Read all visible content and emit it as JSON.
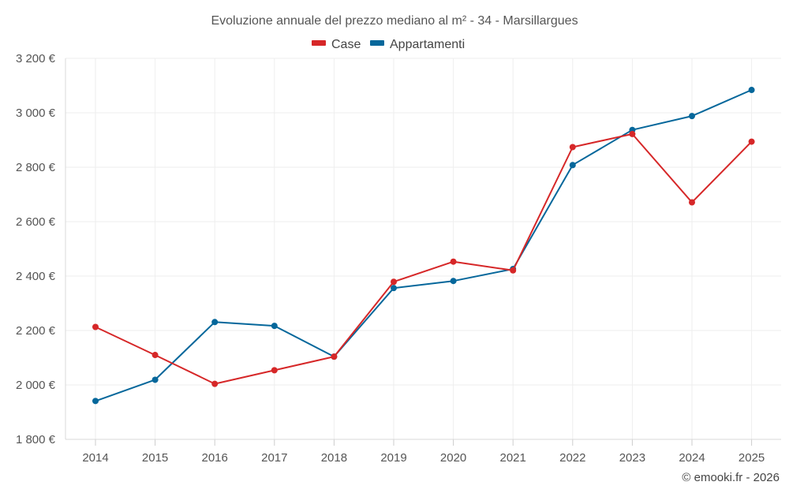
{
  "chart_data": {
    "type": "line",
    "title": "Evoluzione annuale del prezzo mediano al m² - 34 - Marsillargues",
    "categories": [
      "2014",
      "2015",
      "2016",
      "2017",
      "2018",
      "2019",
      "2020",
      "2021",
      "2022",
      "2023",
      "2024",
      "2025"
    ],
    "series": [
      {
        "name": "Case",
        "color": "#d62728",
        "values": [
          2213,
          2110,
          2004,
          2054,
          2104,
          2379,
          2453,
          2421,
          2874,
          2922,
          2671,
          2894
        ]
      },
      {
        "name": "Appartamenti",
        "color": "#05679b",
        "values": [
          1941,
          2019,
          2231,
          2217,
          2104,
          2356,
          2382,
          2426,
          2808,
          2937,
          2988,
          3084
        ]
      }
    ],
    "ylim": [
      1800,
      3200
    ],
    "yticks": [
      1800,
      2000,
      2200,
      2400,
      2600,
      2800,
      3000,
      3200
    ],
    "ytick_labels": [
      "1 800 €",
      "2 000 €",
      "2 200 €",
      "2 400 €",
      "2 600 €",
      "2 800 €",
      "3 000 €",
      "3 200 €"
    ],
    "xlabel": "",
    "ylabel": "",
    "grid": true,
    "legend_position": "top-center"
  },
  "credit": "© emooki.fr - 2026"
}
